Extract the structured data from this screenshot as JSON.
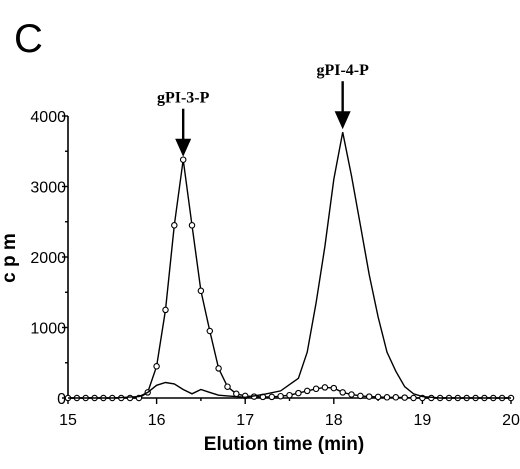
{
  "panel_label": "C",
  "chart_data": {
    "type": "line",
    "title": "",
    "xlabel": "Elution time (min)",
    "ylabel": "c p m",
    "xlim": [
      15,
      20
    ],
    "ylim": [
      0,
      4000
    ],
    "x_ticks": [
      15,
      16,
      17,
      18,
      19,
      20
    ],
    "y_ticks": [
      0,
      1000,
      2000,
      3000,
      4000
    ],
    "grid": false,
    "annotations": [
      {
        "text": "gPI-3-P",
        "x": 16.3,
        "y": 3380
      },
      {
        "text": "gPI-4-P",
        "x": 18.1,
        "y": 3770
      }
    ],
    "series": [
      {
        "marker": "open-circle",
        "x": [
          15.0,
          15.1,
          15.2,
          15.3,
          15.4,
          15.5,
          15.6,
          15.7,
          15.8,
          15.9,
          16.0,
          16.1,
          16.2,
          16.3,
          16.4,
          16.5,
          16.6,
          16.7,
          16.8,
          16.9,
          17.0,
          17.1,
          17.2,
          17.3,
          17.4,
          17.5,
          17.6,
          17.7,
          17.8,
          17.9,
          18.0,
          18.1,
          18.2,
          18.3,
          18.4,
          18.5,
          18.6,
          18.7,
          18.8,
          18.9,
          19.0,
          19.1,
          19.2,
          19.3,
          19.4,
          19.5,
          19.6,
          19.7,
          19.8,
          19.9,
          20.0
        ],
        "values": [
          0,
          0,
          0,
          0,
          0,
          0,
          0,
          0,
          0,
          80,
          450,
          1250,
          2450,
          3380,
          2450,
          1520,
          950,
          420,
          160,
          60,
          30,
          20,
          15,
          15,
          25,
          40,
          70,
          100,
          130,
          150,
          140,
          80,
          50,
          30,
          20,
          15,
          10,
          10,
          5,
          0,
          0,
          0,
          0,
          0,
          0,
          0,
          0,
          0,
          0,
          0,
          0
        ]
      },
      {
        "marker": "none",
        "x": [
          15.0,
          15.5,
          15.8,
          15.9,
          16.0,
          16.1,
          16.2,
          16.3,
          16.4,
          16.5,
          16.6,
          16.7,
          16.8,
          16.9,
          17.0,
          17.2,
          17.4,
          17.6,
          17.7,
          17.8,
          17.9,
          18.0,
          18.1,
          18.2,
          18.3,
          18.4,
          18.5,
          18.6,
          18.7,
          18.8,
          18.9,
          19.0,
          19.2,
          19.5,
          20.0
        ],
        "values": [
          0,
          0,
          20,
          80,
          180,
          220,
          200,
          120,
          60,
          120,
          80,
          40,
          30,
          20,
          10,
          50,
          100,
          280,
          650,
          1350,
          2150,
          3100,
          3770,
          3150,
          2450,
          1750,
          1150,
          650,
          380,
          160,
          60,
          20,
          0,
          0,
          0
        ]
      }
    ]
  }
}
